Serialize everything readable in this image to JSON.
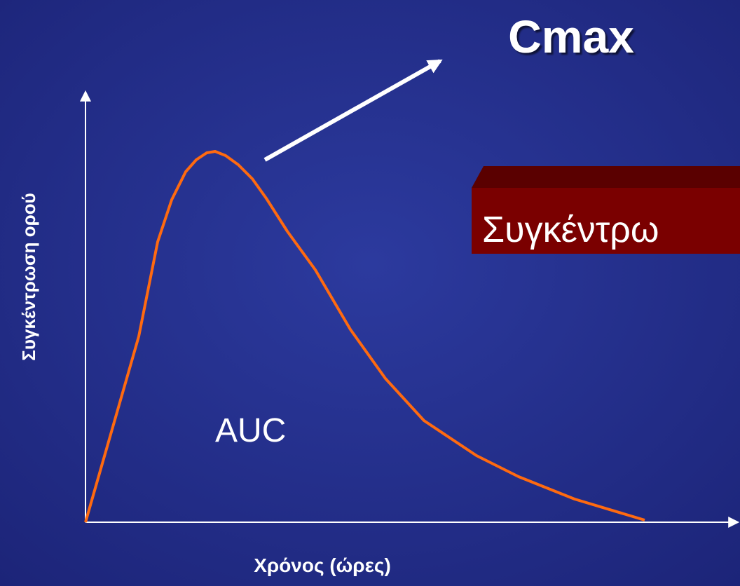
{
  "title": "Cmax",
  "y_axis_label": "Συγκέντρωση ορού",
  "x_axis_label": "Χρόνος (ώρες)",
  "area_label": "AUC",
  "box_text": "Συγκέντρω"
}
